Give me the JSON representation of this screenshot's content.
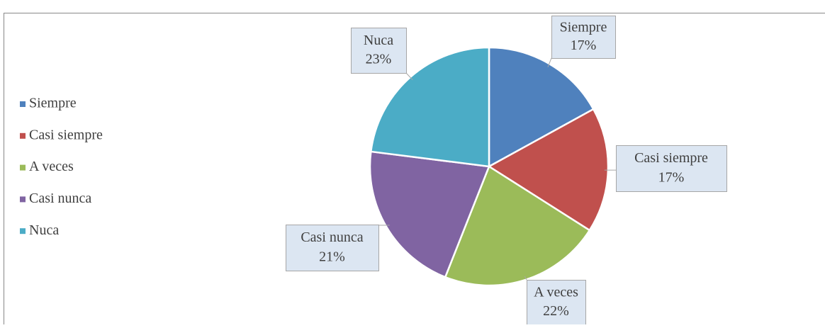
{
  "chart_data": {
    "type": "pie",
    "categories": [
      "Siempre",
      "Casi siempre",
      "A veces",
      "Casi nunca",
      "Nuca"
    ],
    "values": [
      17,
      17,
      22,
      21,
      23
    ],
    "value_labels": [
      "17%",
      "17%",
      "22%",
      "21%",
      "23%"
    ],
    "colors": [
      "#4f81bd",
      "#c0504d",
      "#9bbb59",
      "#8064a2",
      "#4bacc6"
    ],
    "legend": "left"
  }
}
